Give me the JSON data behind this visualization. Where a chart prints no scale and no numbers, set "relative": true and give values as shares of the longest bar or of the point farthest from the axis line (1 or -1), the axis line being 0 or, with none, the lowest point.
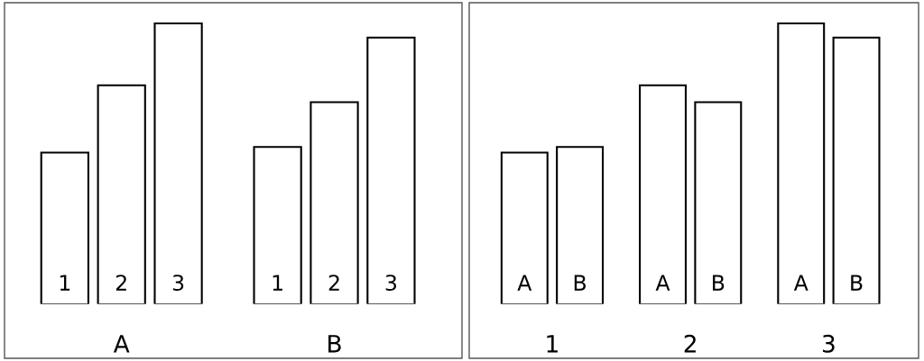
{
  "chart_data": [
    {
      "type": "bar",
      "relative": true,
      "categories": [
        "A",
        "B"
      ],
      "series": [
        {
          "name": "1",
          "color": "#ffffff",
          "values": [
            0.54,
            0.56
          ]
        },
        {
          "name": "2",
          "color": "#ffffff",
          "values": [
            0.78,
            0.72
          ]
        },
        {
          "name": "3",
          "color": "#ffffff",
          "values": [
            1,
            0.95
          ]
        }
      ]
    },
    {
      "type": "bar",
      "relative": true,
      "categories": [
        "1",
        "2",
        "3"
      ],
      "series": [
        {
          "name": "A",
          "color": "#ffffff",
          "values": [
            0.54,
            0.78,
            1
          ]
        },
        {
          "name": "B",
          "color": "#ffffff",
          "values": [
            0.56,
            0.72,
            0.95
          ]
        }
      ]
    }
  ]
}
